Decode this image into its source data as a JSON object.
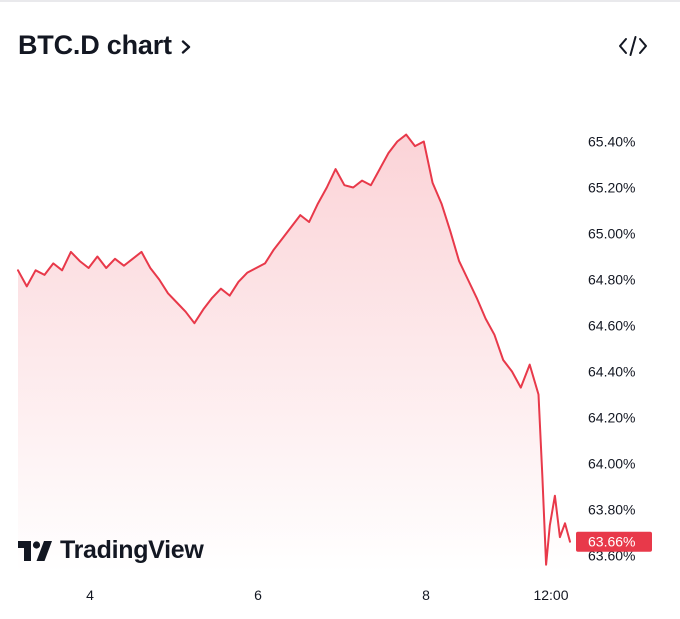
{
  "header": {
    "title": "BTC.D chart",
    "chevron_icon": "chevron-right-icon"
  },
  "toolbar": {
    "embed_icon": "code-embed-icon"
  },
  "branding": {
    "logo_text": "TradingView",
    "logo_icon": "tradingview-logo-icon"
  },
  "colors": {
    "line": "#e8394a",
    "fill_top": "#fbd3d7",
    "fill_bottom": "#ffffff",
    "badge_bg": "#e8394a",
    "text": "#131722"
  },
  "chart_data": {
    "type": "area",
    "title": "BTC.D chart",
    "y_axis": {
      "range": [
        63.56,
        65.5
      ],
      "ticks": [
        "65.40%",
        "65.20%",
        "65.00%",
        "64.80%",
        "64.60%",
        "64.40%",
        "64.20%",
        "64.00%",
        "63.80%",
        "63.60%"
      ]
    },
    "x_axis": {
      "ticks": [
        "4",
        "6",
        "8",
        "12:00"
      ]
    },
    "last_value_label": "63.66%",
    "series": [
      {
        "values": [
          [
            0.0,
            64.84
          ],
          [
            0.7,
            64.77
          ],
          [
            1.4,
            64.84
          ],
          [
            2.1,
            64.82
          ],
          [
            2.8,
            64.87
          ],
          [
            3.5,
            64.84
          ],
          [
            4.2,
            64.92
          ],
          [
            4.9,
            64.88
          ],
          [
            5.6,
            64.85
          ],
          [
            6.3,
            64.9
          ],
          [
            7.0,
            64.85
          ],
          [
            7.7,
            64.89
          ],
          [
            8.4,
            64.86
          ],
          [
            9.1,
            64.89
          ],
          [
            9.8,
            64.92
          ],
          [
            10.5,
            64.85
          ],
          [
            11.2,
            64.8
          ],
          [
            11.9,
            64.74
          ],
          [
            12.6,
            64.7
          ],
          [
            13.3,
            64.66
          ],
          [
            14.0,
            64.61
          ],
          [
            14.7,
            64.67
          ],
          [
            15.4,
            64.72
          ],
          [
            16.1,
            64.76
          ],
          [
            16.8,
            64.73
          ],
          [
            17.5,
            64.79
          ],
          [
            18.2,
            64.83
          ],
          [
            18.9,
            64.85
          ],
          [
            19.6,
            64.87
          ],
          [
            20.3,
            64.93
          ],
          [
            21.0,
            64.98
          ],
          [
            21.7,
            65.03
          ],
          [
            22.4,
            65.08
          ],
          [
            23.1,
            65.05
          ],
          [
            23.8,
            65.13
          ],
          [
            24.5,
            65.2
          ],
          [
            25.2,
            65.28
          ],
          [
            25.9,
            65.21
          ],
          [
            26.6,
            65.2
          ],
          [
            27.3,
            65.23
          ],
          [
            28.0,
            65.21
          ],
          [
            28.7,
            65.28
          ],
          [
            29.4,
            65.35
          ],
          [
            30.1,
            65.4
          ],
          [
            30.8,
            65.43
          ],
          [
            31.5,
            65.38
          ],
          [
            32.2,
            65.4
          ],
          [
            32.9,
            65.22
          ],
          [
            33.6,
            65.13
          ],
          [
            34.3,
            65.01
          ],
          [
            35.0,
            64.88
          ],
          [
            35.7,
            64.8
          ],
          [
            36.4,
            64.72
          ],
          [
            37.1,
            64.63
          ],
          [
            37.8,
            64.56
          ],
          [
            38.5,
            64.45
          ],
          [
            39.2,
            64.4
          ],
          [
            39.9,
            64.33
          ],
          [
            40.6,
            64.43
          ],
          [
            41.3,
            64.3
          ],
          [
            41.6,
            63.95
          ],
          [
            41.9,
            63.56
          ],
          [
            42.2,
            63.73
          ],
          [
            42.6,
            63.86
          ],
          [
            43.0,
            63.68
          ],
          [
            43.4,
            63.74
          ],
          [
            43.8,
            63.66
          ]
        ]
      }
    ],
    "grid": false,
    "legend": "none"
  }
}
